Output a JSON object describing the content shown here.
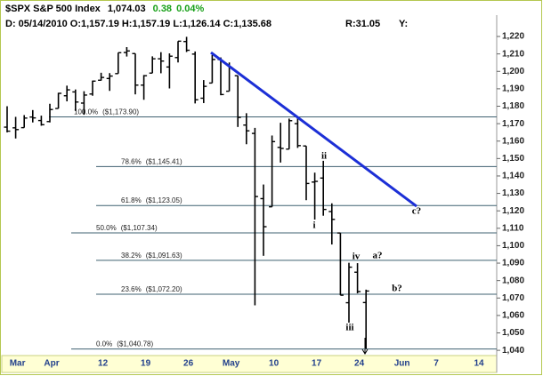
{
  "chart_data": {
    "type": "ohlc",
    "title": "$SPX S&P 500 Index",
    "last": "1,074.03",
    "change": "0.38",
    "change_pct": "0.04%",
    "info": "D: 05/14/2010 O:1,157.19 H:1,157.19 L:1,126.14 C:1,135.68",
    "r_label": "R:31.05",
    "y_label": "Y:",
    "categories": [
      null,
      "Mar",
      null,
      null,
      null,
      "Apr",
      null,
      null,
      null,
      null,
      null,
      "12",
      null,
      null,
      null,
      null,
      "19",
      null,
      null,
      null,
      null,
      "26",
      null,
      null,
      null,
      null,
      "May",
      null,
      null,
      null,
      null,
      "10",
      null,
      null,
      null,
      null,
      "17",
      null,
      null,
      null,
      null,
      "24",
      null,
      null,
      null,
      null,
      "Jun",
      null,
      null,
      null,
      "7",
      null,
      null,
      null,
      null,
      "14",
      null,
      null
    ],
    "color": "#000000",
    "open": [
      1168,
      1167.6,
      1167.7,
      1173.8,
      1171.8,
      1171.2,
      1178.7,
      1186,
      1188.2,
      1181.8,
      1187,
      1194.9,
      1195.9,
      1198.7,
      1210.8,
      1210.2,
      1192.1,
      1199,
      1207.2,
      1202.5,
      1207.9,
      1217.1,
      1209.9,
      1184.6,
      1193.3,
      1206.8,
      1188.6,
      1197.5,
      1169.2,
      1164.4,
      1127,
      1122.3,
      1156.4,
      1155.4,
      1170,
      1157.2,
      1136.5,
      1138.8,
      1119.6,
      1107.3,
      1067.3,
      1084.8,
      1067.4,
      null,
      null,
      null,
      null,
      null,
      null,
      null,
      null,
      null,
      null,
      null,
      null,
      null,
      null,
      null
    ],
    "high": [
      1180,
      1173.9,
      1174.9,
      1177.8,
      1174.6,
      1181.4,
      1187.7,
      1191.8,
      1189.6,
      1188.6,
      1194.7,
      1199.2,
      1199,
      1210.7,
      1213.9,
      1210.2,
      1197.9,
      1208.6,
      1211,
      1210.3,
      1217.3,
      1219.8,
      1211.4,
      1195,
      1209.4,
      1208,
      1205.1,
      1197.5,
      1176,
      1167.6,
      1135.1,
      1163.2,
      1170.5,
      1172.9,
      1173.6,
      1157.2,
      1141.9,
      1148.7,
      1124.3,
      1107.3,
      1090.2,
      1090,
      1074.8,
      null,
      null,
      null,
      null,
      null,
      null,
      null,
      null,
      null,
      null,
      null,
      null,
      null,
      null,
      null
    ],
    "low": [
      1165,
      1161.5,
      1167.7,
      1170.7,
      1168.8,
      1170.7,
      1178.7,
      1182.8,
      1177.3,
      1175.1,
      1186,
      1194.7,
      1188.8,
      1198.7,
      1208.5,
      1186.8,
      1183.7,
      1199,
      1198.9,
      1190.2,
      1205.1,
      1211.1,
      1181.6,
      1181.8,
      1193.3,
      1186.3,
      1188.6,
      1168.1,
      1158.2,
      1065.8,
      1094.2,
      1122.3,
      1147.7,
      1155.4,
      1156.1,
      1126.1,
      1115,
      1117.2,
      1100.7,
      1071.6,
      1055.9,
      1072.7,
      1040.8,
      null,
      null,
      null,
      null,
      null,
      null,
      null,
      null,
      null,
      null,
      null,
      null,
      null,
      null,
      null
    ],
    "close": [
      1165.7,
      1166.6,
      1173.2,
      1173.3,
      1169.4,
      1178.1,
      1187.4,
      1189.4,
      1182.4,
      1186.4,
      1194.4,
      1196.5,
      1197.3,
      1210.7,
      1211.7,
      1192.1,
      1197.5,
      1207.2,
      1205.9,
      1208.7,
      1217.3,
      1212.1,
      1183.7,
      1191.4,
      1206.8,
      1186.7,
      1202.3,
      1173.6,
      1165.9,
      1128.2,
      1110.9,
      1159.7,
      1155.8,
      1171.7,
      1157.4,
      1135.7,
      1136.9,
      1120.8,
      1115.1,
      1071.6,
      1087.7,
      1073.7,
      1074,
      null,
      null,
      null,
      null,
      null,
      null,
      null,
      null,
      null,
      null,
      null,
      null,
      null,
      null,
      null
    ],
    "ylim": [
      1037,
      1232
    ],
    "yticks": [
      {
        "value": 1040,
        "label": "1,040"
      },
      {
        "value": 1050,
        "label": "1,050"
      },
      {
        "value": 1060,
        "label": "1,060"
      },
      {
        "value": 1070,
        "label": "1,070"
      },
      {
        "value": 1080,
        "label": "1,080"
      },
      {
        "value": 1090,
        "label": "1,090"
      },
      {
        "value": 1100,
        "label": "1,100"
      },
      {
        "value": 1110,
        "label": "1,110"
      },
      {
        "value": 1120,
        "label": "1,120"
      },
      {
        "value": 1130,
        "label": "1,130"
      },
      {
        "value": 1140,
        "label": "1,140"
      },
      {
        "value": 1150,
        "label": "1,150"
      },
      {
        "value": 1160,
        "label": "1,160"
      },
      {
        "value": 1170,
        "label": "1,170"
      },
      {
        "value": 1180,
        "label": "1,180"
      },
      {
        "value": 1190,
        "label": "1,190"
      },
      {
        "value": 1200,
        "label": "1,200"
      },
      {
        "value": 1210,
        "label": "1,210"
      },
      {
        "value": 1220,
        "label": "1,220"
      }
    ],
    "fib_levels": [
      {
        "label": "100.0%",
        "value": 1173.9,
        "value_label": "($1,173.90)"
      },
      {
        "label": "78.6%",
        "value": 1145.41,
        "value_label": "($1,145.41)"
      },
      {
        "label": "61.8%",
        "value": 1123.05,
        "value_label": "($1,123.05)"
      },
      {
        "label": "50.0%",
        "value": 1107.34,
        "value_label": "($1,107.34)"
      },
      {
        "label": "38.2%",
        "value": 1091.63,
        "value_label": "($1,091.63)"
      },
      {
        "label": "23.6%",
        "value": 1072.2,
        "value_label": "($1,072.20)"
      },
      {
        "label": "0.0%",
        "value": 1040.78,
        "value_label": "($1,040.78)"
      }
    ],
    "fib_color": "#3f6070",
    "trendline": {
      "color": "#1c2fd6",
      "values": [
        1210.8,
        1122.6
      ]
    },
    "annotations": [
      "ii",
      "i",
      "iii",
      "iv",
      "a?",
      "b?",
      "c?"
    ]
  }
}
